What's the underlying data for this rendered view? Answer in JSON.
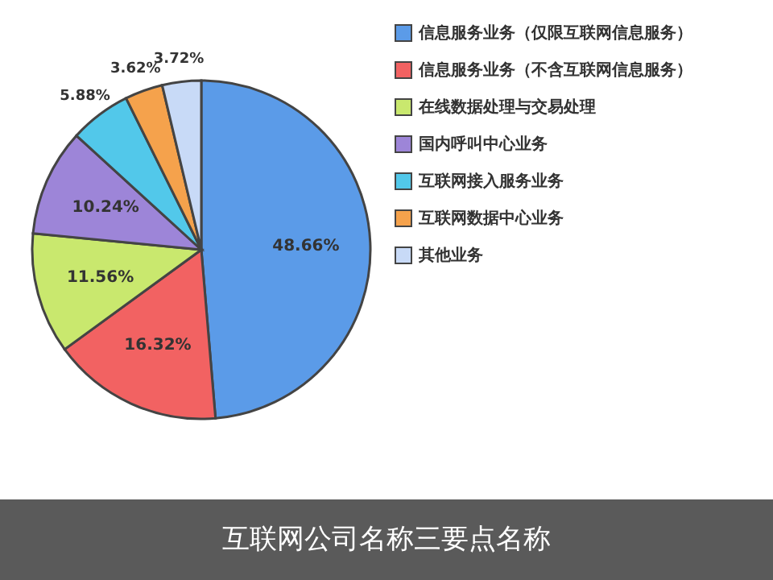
{
  "chart_data": {
    "type": "pie",
    "title": "互联网公司名称三要点名称",
    "categories": [
      "信息服务业务（仅限互联网信息服务）",
      "信息服务业务（不含互联网信息服务）",
      "在线数据处理与交易处理",
      "国内呼叫中心业务",
      "互联网接入服务业务",
      "互联网数据中心业务",
      "其他业务"
    ],
    "values": [
      48.66,
      16.32,
      11.56,
      10.24,
      5.88,
      3.62,
      3.72
    ],
    "value_labels": [
      "48.66%",
      "16.32%",
      "11.56%",
      "10.24%",
      "5.88%",
      "3.62%",
      "3.72%"
    ],
    "colors": [
      "#5b9be8",
      "#f26262",
      "#c9e86e",
      "#9d85d8",
      "#52c8ea",
      "#f5a24c",
      "#c8daf7"
    ],
    "legend": "right"
  }
}
